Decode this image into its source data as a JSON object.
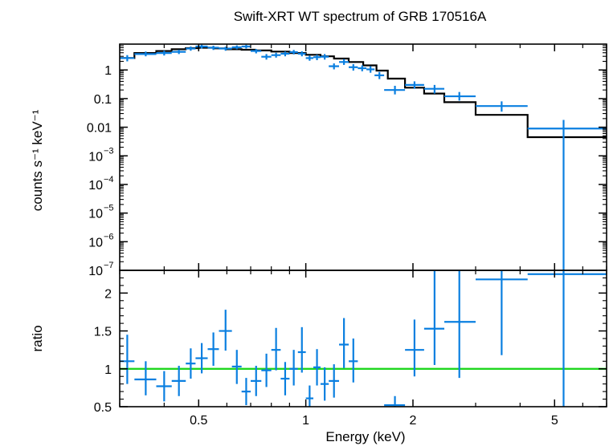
{
  "chart_data": [
    {
      "type": "line",
      "title": "Swift-XRT WT spectrum of GRB 170516A",
      "xlabel": "",
      "ylabel": "counts s⁻¹ keV⁻¹",
      "x_scale": "log",
      "y_scale": "log",
      "xlim": [
        0.3,
        7.0
      ],
      "ylim": [
        1e-07,
        8
      ],
      "grid": false,
      "colors": {
        "data": "#0a7fe0",
        "model": "#000000"
      },
      "y_tick_labels": [
        {
          "v": 1e-07,
          "base": "10",
          "exp": "−7"
        },
        {
          "v": 1e-06,
          "base": "10",
          "exp": "−6"
        },
        {
          "v": 1e-05,
          "base": "10",
          "exp": "−5"
        },
        {
          "v": 0.0001,
          "base": "10",
          "exp": "−4"
        },
        {
          "v": 0.001,
          "base": "10",
          "exp": "−3"
        },
        {
          "v": 0.01,
          "base": "0.01",
          "exp": ""
        },
        {
          "v": 0.1,
          "base": "0.1",
          "exp": ""
        },
        {
          "v": 1,
          "base": "1",
          "exp": ""
        }
      ],
      "series": [
        {
          "role": "data",
          "points": [
            {
              "x": 0.315,
              "xlo": 0.3,
              "xhi": 0.33,
              "y": 2.6,
              "ylo": 2.0,
              "yhi": 3.3
            },
            {
              "x": 0.355,
              "xlo": 0.33,
              "xhi": 0.38,
              "y": 3.6,
              "ylo": 3.0,
              "yhi": 4.4
            },
            {
              "x": 0.4,
              "xlo": 0.38,
              "xhi": 0.42,
              "y": 3.9,
              "ylo": 3.2,
              "yhi": 4.7
            },
            {
              "x": 0.44,
              "xlo": 0.42,
              "xhi": 0.46,
              "y": 4.3,
              "ylo": 3.6,
              "yhi": 5.1
            },
            {
              "x": 0.475,
              "xlo": 0.46,
              "xhi": 0.49,
              "y": 5.6,
              "ylo": 4.7,
              "yhi": 6.6
            },
            {
              "x": 0.51,
              "xlo": 0.49,
              "xhi": 0.53,
              "y": 6.6,
              "ylo": 5.6,
              "yhi": 7.6
            },
            {
              "x": 0.55,
              "xlo": 0.53,
              "xhi": 0.57,
              "y": 6.0,
              "ylo": 5.0,
              "yhi": 7.0
            },
            {
              "x": 0.595,
              "xlo": 0.57,
              "xhi": 0.62,
              "y": 5.6,
              "ylo": 4.7,
              "yhi": 6.5
            },
            {
              "x": 0.64,
              "xlo": 0.62,
              "xhi": 0.66,
              "y": 6.2,
              "ylo": 5.3,
              "yhi": 7.2
            },
            {
              "x": 0.68,
              "xlo": 0.66,
              "xhi": 0.7,
              "y": 6.6,
              "ylo": 5.6,
              "yhi": 7.6
            },
            {
              "x": 0.725,
              "xlo": 0.7,
              "xhi": 0.75,
              "y": 4.6,
              "ylo": 3.8,
              "yhi": 5.4
            },
            {
              "x": 0.775,
              "xlo": 0.75,
              "xhi": 0.8,
              "y": 2.9,
              "ylo": 2.3,
              "yhi": 3.6
            },
            {
              "x": 0.825,
              "xlo": 0.8,
              "xhi": 0.85,
              "y": 3.3,
              "ylo": 2.7,
              "yhi": 4.0
            },
            {
              "x": 0.875,
              "xlo": 0.85,
              "xhi": 0.9,
              "y": 3.7,
              "ylo": 3.0,
              "yhi": 4.4
            },
            {
              "x": 0.925,
              "xlo": 0.9,
              "xhi": 0.95,
              "y": 4.2,
              "ylo": 3.5,
              "yhi": 5.0
            },
            {
              "x": 0.975,
              "xlo": 0.95,
              "xhi": 1.0,
              "y": 3.7,
              "ylo": 3.0,
              "yhi": 4.5
            },
            {
              "x": 1.025,
              "xlo": 1.0,
              "xhi": 1.05,
              "y": 2.6,
              "ylo": 2.1,
              "yhi": 3.2
            },
            {
              "x": 1.075,
              "xlo": 1.05,
              "xhi": 1.1,
              "y": 2.8,
              "ylo": 2.2,
              "yhi": 3.4
            },
            {
              "x": 1.13,
              "xlo": 1.1,
              "xhi": 1.16,
              "y": 2.9,
              "ylo": 2.3,
              "yhi": 3.6
            },
            {
              "x": 1.2,
              "xlo": 1.16,
              "xhi": 1.24,
              "y": 1.35,
              "ylo": 1.05,
              "yhi": 1.7
            },
            {
              "x": 1.28,
              "xlo": 1.24,
              "xhi": 1.32,
              "y": 1.9,
              "ylo": 1.5,
              "yhi": 2.4
            },
            {
              "x": 1.36,
              "xlo": 1.32,
              "xhi": 1.4,
              "y": 1.25,
              "ylo": 0.95,
              "yhi": 1.6
            },
            {
              "x": 1.44,
              "xlo": 1.4,
              "xhi": 1.48,
              "y": 1.15,
              "ylo": 0.9,
              "yhi": 1.45
            },
            {
              "x": 1.52,
              "xlo": 1.48,
              "xhi": 1.56,
              "y": 1.05,
              "ylo": 0.8,
              "yhi": 1.35
            },
            {
              "x": 1.61,
              "xlo": 1.56,
              "xhi": 1.66,
              "y": 0.65,
              "ylo": 0.48,
              "yhi": 0.85
            },
            {
              "x": 1.78,
              "xlo": 1.66,
              "xhi": 1.9,
              "y": 0.2,
              "ylo": 0.14,
              "yhi": 0.28
            },
            {
              "x": 2.02,
              "xlo": 1.9,
              "xhi": 2.15,
              "y": 0.3,
              "ylo": 0.22,
              "yhi": 0.4
            },
            {
              "x": 2.3,
              "xlo": 2.15,
              "xhi": 2.45,
              "y": 0.22,
              "ylo": 0.15,
              "yhi": 0.3
            },
            {
              "x": 2.7,
              "xlo": 2.45,
              "xhi": 3.0,
              "y": 0.12,
              "ylo": 0.085,
              "yhi": 0.17
            },
            {
              "x": 3.55,
              "xlo": 3.0,
              "xhi": 4.2,
              "y": 0.055,
              "ylo": 0.035,
              "yhi": 0.08
            },
            {
              "x": 5.3,
              "xlo": 4.2,
              "xhi": 7.0,
              "y": 0.009,
              "ylo": 1e-07,
              "yhi": 0.018
            }
          ]
        },
        {
          "role": "model",
          "steps": [
            {
              "x0": 0.3,
              "x1": 0.33,
              "y": 2.6
            },
            {
              "x0": 0.33,
              "x1": 0.38,
              "y": 3.9
            },
            {
              "x0": 0.38,
              "x1": 0.42,
              "y": 4.6
            },
            {
              "x0": 0.42,
              "x1": 0.46,
              "y": 5.3
            },
            {
              "x0": 0.46,
              "x1": 0.5,
              "y": 5.8
            },
            {
              "x0": 0.5,
              "x1": 0.55,
              "y": 6.0
            },
            {
              "x0": 0.55,
              "x1": 0.6,
              "y": 5.7
            },
            {
              "x0": 0.6,
              "x1": 0.66,
              "y": 5.3
            },
            {
              "x0": 0.66,
              "x1": 0.72,
              "y": 5.1
            },
            {
              "x0": 0.72,
              "x1": 0.8,
              "y": 4.8
            },
            {
              "x0": 0.8,
              "x1": 0.9,
              "y": 4.4
            },
            {
              "x0": 0.9,
              "x1": 1.0,
              "y": 3.9
            },
            {
              "x0": 1.0,
              "x1": 1.1,
              "y": 3.4
            },
            {
              "x0": 1.1,
              "x1": 1.2,
              "y": 3.0
            },
            {
              "x0": 1.2,
              "x1": 1.32,
              "y": 2.5
            },
            {
              "x0": 1.32,
              "x1": 1.45,
              "y": 1.9
            },
            {
              "x0": 1.45,
              "x1": 1.58,
              "y": 1.45
            },
            {
              "x0": 1.58,
              "x1": 1.7,
              "y": 0.95
            },
            {
              "x0": 1.7,
              "x1": 1.9,
              "y": 0.5
            },
            {
              "x0": 1.9,
              "x1": 2.15,
              "y": 0.24
            },
            {
              "x0": 2.15,
              "x1": 2.45,
              "y": 0.15
            },
            {
              "x0": 2.45,
              "x1": 3.0,
              "y": 0.075
            },
            {
              "x0": 3.0,
              "x1": 4.2,
              "y": 0.027
            },
            {
              "x0": 4.2,
              "x1": 7.0,
              "y": 0.0045
            }
          ]
        }
      ]
    },
    {
      "type": "scatter",
      "xlabel": "Energy (keV)",
      "ylabel": "ratio",
      "x_scale": "log",
      "xlim": [
        0.3,
        7.0
      ],
      "ylim": [
        0.5,
        2.3
      ],
      "grid": false,
      "colors": {
        "data": "#0a7fe0",
        "reference": "#1fd61f"
      },
      "reference_line": 1,
      "y_tick_labels": [
        {
          "v": 0.5,
          "label": "0.5"
        },
        {
          "v": 1,
          "label": "1"
        },
        {
          "v": 1.5,
          "label": "1.5"
        },
        {
          "v": 2,
          "label": "2"
        }
      ],
      "x_tick_labels": [
        {
          "v": 0.5,
          "label": "0.5"
        },
        {
          "v": 1,
          "label": "1"
        },
        {
          "v": 2,
          "label": "2"
        },
        {
          "v": 5,
          "label": "5"
        }
      ],
      "points": [
        {
          "x": 0.315,
          "xlo": 0.3,
          "xhi": 0.33,
          "y": 1.1,
          "ylo": 0.8,
          "yhi": 1.45
        },
        {
          "x": 0.355,
          "xlo": 0.33,
          "xhi": 0.38,
          "y": 0.86,
          "ylo": 0.65,
          "yhi": 1.1
        },
        {
          "x": 0.4,
          "xlo": 0.38,
          "xhi": 0.42,
          "y": 0.77,
          "ylo": 0.57,
          "yhi": 0.97
        },
        {
          "x": 0.44,
          "xlo": 0.42,
          "xhi": 0.46,
          "y": 0.84,
          "ylo": 0.64,
          "yhi": 1.04
        },
        {
          "x": 0.475,
          "xlo": 0.46,
          "xhi": 0.49,
          "y": 1.07,
          "ylo": 0.87,
          "yhi": 1.27
        },
        {
          "x": 0.51,
          "xlo": 0.49,
          "xhi": 0.53,
          "y": 1.14,
          "ylo": 0.94,
          "yhi": 1.34
        },
        {
          "x": 0.55,
          "xlo": 0.53,
          "xhi": 0.57,
          "y": 1.26,
          "ylo": 1.04,
          "yhi": 1.48
        },
        {
          "x": 0.595,
          "xlo": 0.57,
          "xhi": 0.62,
          "y": 1.5,
          "ylo": 1.24,
          "yhi": 1.78
        },
        {
          "x": 0.64,
          "xlo": 0.62,
          "xhi": 0.66,
          "y": 1.03,
          "ylo": 0.8,
          "yhi": 1.25
        },
        {
          "x": 0.68,
          "xlo": 0.66,
          "xhi": 0.7,
          "y": 0.7,
          "ylo": 0.52,
          "yhi": 0.88
        },
        {
          "x": 0.725,
          "xlo": 0.7,
          "xhi": 0.75,
          "y": 0.84,
          "ylo": 0.64,
          "yhi": 1.04
        },
        {
          "x": 0.775,
          "xlo": 0.75,
          "xhi": 0.8,
          "y": 0.98,
          "ylo": 0.76,
          "yhi": 1.2
        },
        {
          "x": 0.825,
          "xlo": 0.8,
          "xhi": 0.85,
          "y": 1.25,
          "ylo": 0.98,
          "yhi": 1.54
        },
        {
          "x": 0.875,
          "xlo": 0.85,
          "xhi": 0.9,
          "y": 0.87,
          "ylo": 0.65,
          "yhi": 1.09
        },
        {
          "x": 0.925,
          "xlo": 0.9,
          "xhi": 0.95,
          "y": 1.0,
          "ylo": 0.78,
          "yhi": 1.25
        },
        {
          "x": 0.975,
          "xlo": 0.95,
          "xhi": 1.0,
          "y": 1.22,
          "ylo": 0.95,
          "yhi": 1.55
        },
        {
          "x": 1.025,
          "xlo": 1.0,
          "xhi": 1.05,
          "y": 0.61,
          "ylo": 0.45,
          "yhi": 0.78
        },
        {
          "x": 1.075,
          "xlo": 1.05,
          "xhi": 1.1,
          "y": 1.02,
          "ylo": 0.78,
          "yhi": 1.26
        },
        {
          "x": 1.13,
          "xlo": 1.1,
          "xhi": 1.16,
          "y": 0.8,
          "ylo": 0.58,
          "yhi": 1.02
        },
        {
          "x": 1.2,
          "xlo": 1.16,
          "xhi": 1.24,
          "y": 0.84,
          "ylo": 0.62,
          "yhi": 1.06
        },
        {
          "x": 1.28,
          "xlo": 1.24,
          "xhi": 1.32,
          "y": 1.32,
          "ylo": 1.01,
          "yhi": 1.67
        },
        {
          "x": 1.36,
          "xlo": 1.32,
          "xhi": 1.4,
          "y": 1.1,
          "ylo": 0.82,
          "yhi": 1.4
        },
        {
          "x": 1.78,
          "xlo": 1.66,
          "xhi": 1.9,
          "y": 0.52,
          "ylo": 0.4,
          "yhi": 0.64
        },
        {
          "x": 2.02,
          "xlo": 1.9,
          "xhi": 2.15,
          "y": 1.25,
          "ylo": 0.9,
          "yhi": 1.65
        },
        {
          "x": 2.3,
          "xlo": 2.15,
          "xhi": 2.45,
          "y": 1.53,
          "ylo": 1.05,
          "yhi": 2.3
        },
        {
          "x": 2.7,
          "xlo": 2.45,
          "xhi": 3.0,
          "y": 1.62,
          "ylo": 0.88,
          "yhi": 2.3
        },
        {
          "x": 3.55,
          "xlo": 3.0,
          "xhi": 4.2,
          "y": 2.18,
          "ylo": 1.18,
          "yhi": 2.3
        },
        {
          "x": 5.3,
          "xlo": 4.2,
          "xhi": 7.0,
          "y": 2.25,
          "ylo": 0.5,
          "yhi": 2.3
        }
      ]
    }
  ]
}
